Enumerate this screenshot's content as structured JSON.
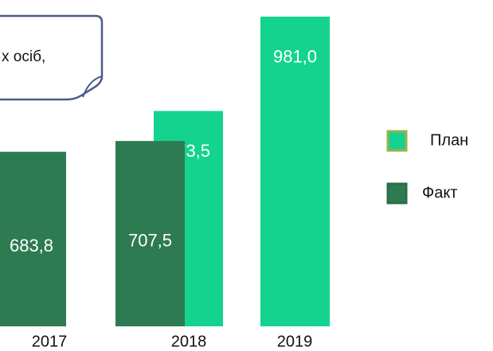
{
  "chart_data": {
    "type": "bar",
    "annotation": "х осіб,",
    "categories": [
      "2017",
      "2018",
      "2019"
    ],
    "series": [
      {
        "name": "План",
        "color": "#14d38f",
        "values": [
          null,
          773.5,
          981.0
        ],
        "value_labels": [
          null,
          "773,5",
          "981,0"
        ]
      },
      {
        "name": "Факт",
        "color": "#2e7b52",
        "values": [
          683.8,
          707.5,
          null
        ],
        "value_labels": [
          "683,8",
          "707,5",
          null
        ]
      }
    ],
    "ylim": [
      300,
      1000
    ]
  }
}
